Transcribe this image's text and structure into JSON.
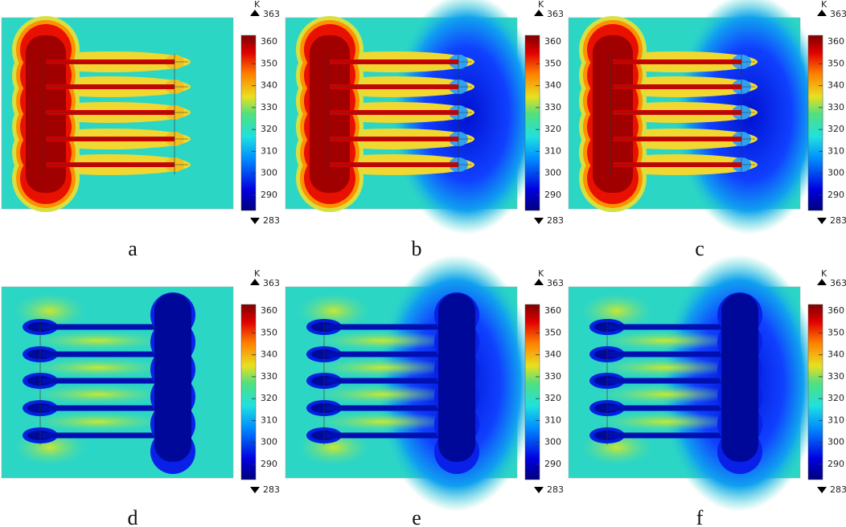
{
  "panels": [
    {
      "label": "a",
      "colorbar": {
        "unit": "K",
        "max": 363,
        "min": 283,
        "ticks": [
          290,
          300,
          310,
          320,
          330,
          340,
          350,
          360
        ]
      }
    },
    {
      "label": "b",
      "colorbar": {
        "unit": "K",
        "max": 363,
        "min": 283,
        "ticks": [
          290,
          300,
          310,
          320,
          330,
          340,
          350,
          360
        ]
      }
    },
    {
      "label": "c",
      "colorbar": {
        "unit": "K",
        "max": 363,
        "min": 283,
        "ticks": [
          290,
          300,
          310,
          320,
          330,
          340,
          350,
          360
        ]
      }
    },
    {
      "label": "d",
      "colorbar": {
        "unit": "K",
        "max": 363,
        "min": 283,
        "ticks": [
          290,
          300,
          310,
          320,
          330,
          340,
          350,
          360
        ]
      }
    },
    {
      "label": "e",
      "colorbar": {
        "unit": "K",
        "max": 363,
        "min": 283,
        "ticks": [
          290,
          300,
          310,
          320,
          330,
          340,
          350,
          360
        ]
      }
    },
    {
      "label": "f",
      "colorbar": {
        "unit": "K",
        "max": 363,
        "min": 283,
        "ticks": [
          290,
          300,
          310,
          320,
          330,
          340,
          350,
          360
        ]
      }
    }
  ]
}
